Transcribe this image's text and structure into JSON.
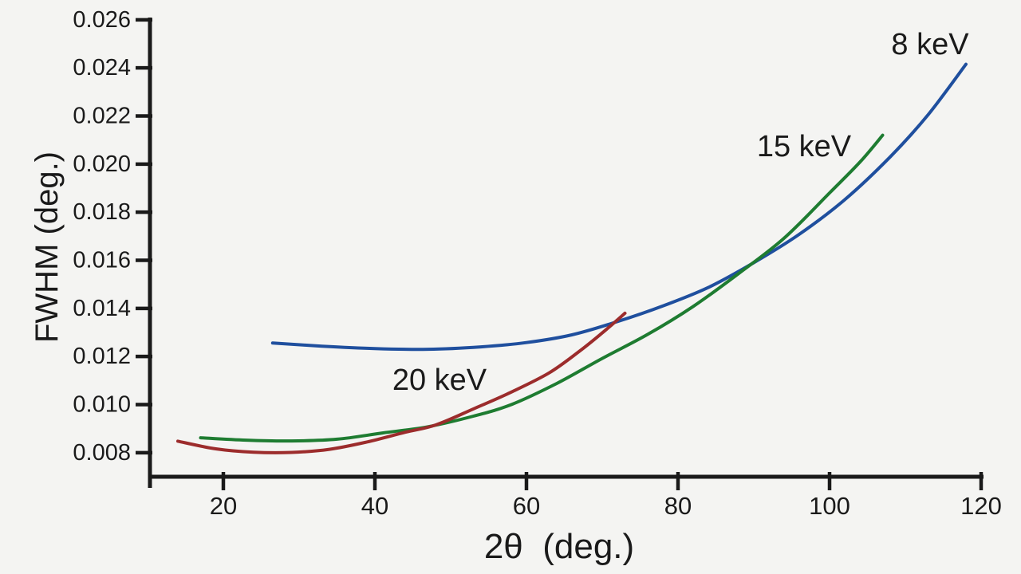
{
  "colors": {
    "background": "#f4f4f2",
    "axis": "#1a1a1a",
    "text": "#1a1a1a",
    "series_blue": "#1f4f9e",
    "series_green": "#1e7c31",
    "series_red": "#9c2c2c"
  },
  "chart_data": {
    "type": "line",
    "title": "",
    "xlabel": "2θ  (deg.)",
    "ylabel": "FWHM (deg.)",
    "xlim": [
      10,
      120.5
    ],
    "ylim": [
      0.007,
      0.026
    ],
    "x_ticks": [
      20,
      40,
      60,
      80,
      100,
      120
    ],
    "y_ticks": [
      0.008,
      0.01,
      0.012,
      0.014,
      0.016,
      0.018,
      0.02,
      0.022,
      0.024,
      0.026
    ],
    "grid": false,
    "legend_position": "inline-annotations",
    "series": [
      {
        "name": "8 keV",
        "color": "#1f4f9e",
        "points": [
          [
            26.5,
            0.01256
          ],
          [
            33,
            0.01243
          ],
          [
            40,
            0.01233
          ],
          [
            47,
            0.0123
          ],
          [
            54,
            0.0124
          ],
          [
            60,
            0.01258
          ],
          [
            66,
            0.0129
          ],
          [
            72,
            0.01345
          ],
          [
            78,
            0.0141
          ],
          [
            84,
            0.01487
          ],
          [
            90,
            0.0159
          ],
          [
            96,
            0.01708
          ],
          [
            102,
            0.01852
          ],
          [
            108,
            0.0203
          ],
          [
            113,
            0.02205
          ],
          [
            118,
            0.02415
          ]
        ]
      },
      {
        "name": "15 keV",
        "color": "#1e7c31",
        "points": [
          [
            17,
            0.00862
          ],
          [
            23,
            0.00852
          ],
          [
            29,
            0.00849
          ],
          [
            35,
            0.00856
          ],
          [
            41,
            0.00882
          ],
          [
            47,
            0.00908
          ],
          [
            53,
            0.00952
          ],
          [
            58,
            0.01
          ],
          [
            64,
            0.01088
          ],
          [
            70,
            0.01192
          ],
          [
            76,
            0.01292
          ],
          [
            82,
            0.01408
          ],
          [
            88,
            0.01545
          ],
          [
            94,
            0.01692
          ],
          [
            100,
            0.0188
          ],
          [
            104,
            0.02008
          ],
          [
            107,
            0.0212
          ]
        ]
      },
      {
        "name": "20 keV",
        "color": "#9c2c2c",
        "points": [
          [
            14,
            0.00848
          ],
          [
            19,
            0.00816
          ],
          [
            24,
            0.00802
          ],
          [
            29,
            0.00801
          ],
          [
            34,
            0.00814
          ],
          [
            39,
            0.00845
          ],
          [
            44,
            0.00885
          ],
          [
            48,
            0.00915
          ],
          [
            53,
            0.00982
          ],
          [
            58,
            0.01052
          ],
          [
            63,
            0.01132
          ],
          [
            67,
            0.01222
          ],
          [
            70,
            0.01298
          ],
          [
            73,
            0.0138
          ]
        ]
      }
    ],
    "annotations": [
      {
        "text": "8 keV",
        "series": "8 keV"
      },
      {
        "text": "15 keV",
        "series": "15 keV"
      },
      {
        "text": "20 keV",
        "series": "20 keV"
      }
    ]
  }
}
